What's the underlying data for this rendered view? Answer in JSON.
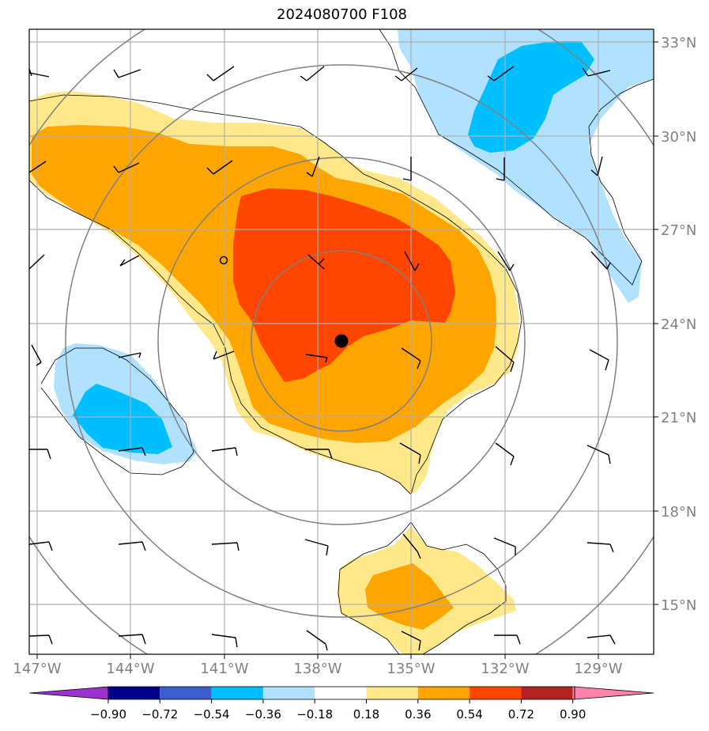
{
  "title": "2024080700 F108",
  "map": {
    "lat_range": [
      13.6,
      33.6
    ],
    "lon_range": [
      -147.3,
      -127.3
    ],
    "graticule_lats": [
      15,
      18,
      21,
      24,
      27,
      30,
      33
    ],
    "graticule_lons": [
      -147,
      -144,
      -141,
      -138,
      -135,
      -132,
      -129
    ],
    "center": {
      "lat": 23.4,
      "lon": -136.9
    },
    "secondary_marker": {
      "lat": 25.9,
      "lon": -141.0
    },
    "range_ring_radii_deg": [
      3,
      6,
      9,
      12
    ],
    "lat_labels": [
      "15°N",
      "18°N",
      "21°N",
      "24°N",
      "27°N",
      "30°N",
      "33°N"
    ],
    "lon_labels": [
      "147°W",
      "144°W",
      "141°W",
      "138°W",
      "135°W",
      "132°W",
      "129°W"
    ]
  },
  "colorbar": {
    "levels": [
      "−0.90",
      "−0.72",
      "−0.54",
      "−0.36",
      "−0.18",
      "0.18",
      "0.36",
      "0.54",
      "0.72",
      "0.90"
    ],
    "colors": [
      "#9a32cd",
      "#00008b",
      "#3a5fcd",
      "#00bfff",
      "#b0e2ff",
      "#ffffff",
      "#ffe88a",
      "#ffa500",
      "#ff4500",
      "#b22222",
      "#ff82ab"
    ]
  },
  "colors": {
    "light_blue": "#b0e2ff",
    "blue": "#00bfff",
    "light_yellow": "#ffe88a",
    "orange": "#ffa500",
    "red_orange": "#ff4500"
  }
}
